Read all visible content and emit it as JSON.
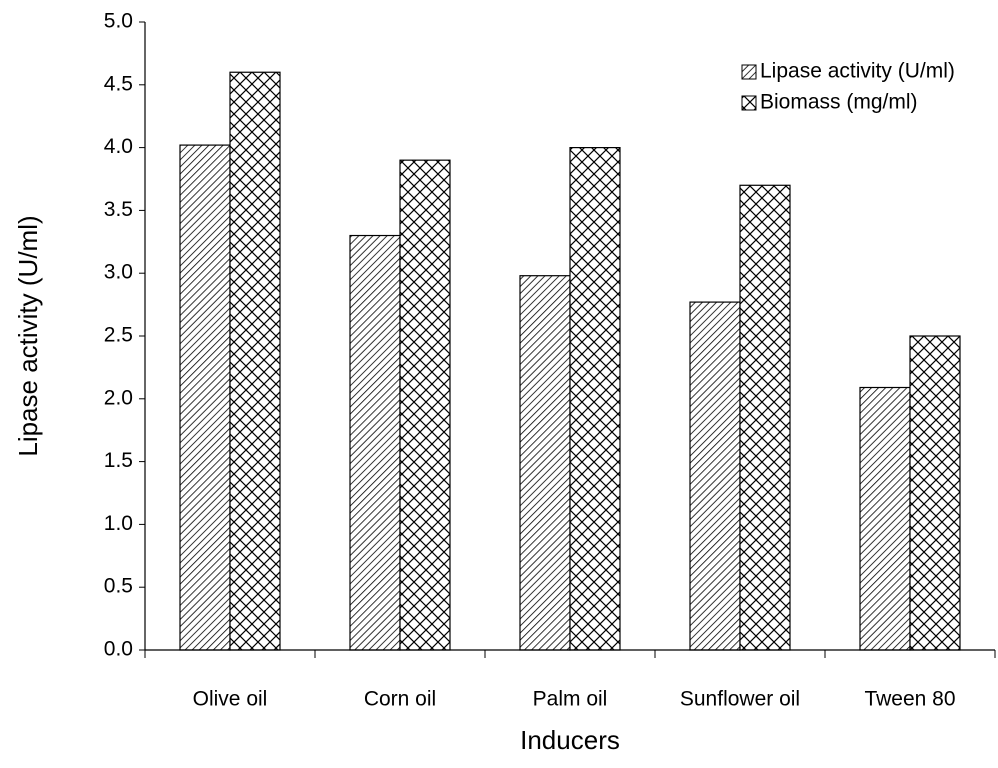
{
  "chart_data": {
    "type": "bar",
    "xlabel": "Inducers",
    "ylabel": "Lipase activity (U/ml)",
    "categories": [
      "Olive oil",
      "Corn oil",
      "Palm oil",
      "Sunflower oil",
      "Tween 80"
    ],
    "series": [
      {
        "name": "Lipase activity (U/ml)",
        "color": "#000000",
        "pattern": "diagonal",
        "values": [
          4.02,
          3.3,
          2.98,
          2.77,
          2.09
        ]
      },
      {
        "name": "Biomass (mg/ml)",
        "color": "#000000",
        "pattern": "crosshatch",
        "values": [
          4.6,
          3.9,
          4.0,
          3.7,
          2.5
        ]
      }
    ],
    "ylim": [
      0,
      5
    ],
    "yticks": [
      {
        "value": 0,
        "label": "0.0"
      },
      {
        "value": 0.5,
        "label": "0.5"
      },
      {
        "value": 1,
        "label": "1.0"
      },
      {
        "value": 1.5,
        "label": "1.5"
      },
      {
        "value": 2,
        "label": "2.0"
      },
      {
        "value": 2.5,
        "label": "2.5"
      },
      {
        "value": 3,
        "label": "3.0"
      },
      {
        "value": 3.5,
        "label": "3.5"
      },
      {
        "value": 4,
        "label": "4.0"
      },
      {
        "value": 4.5,
        "label": "4.5"
      },
      {
        "value": 5,
        "label": "5.0"
      }
    ],
    "grid": false,
    "legend": "upper right"
  }
}
